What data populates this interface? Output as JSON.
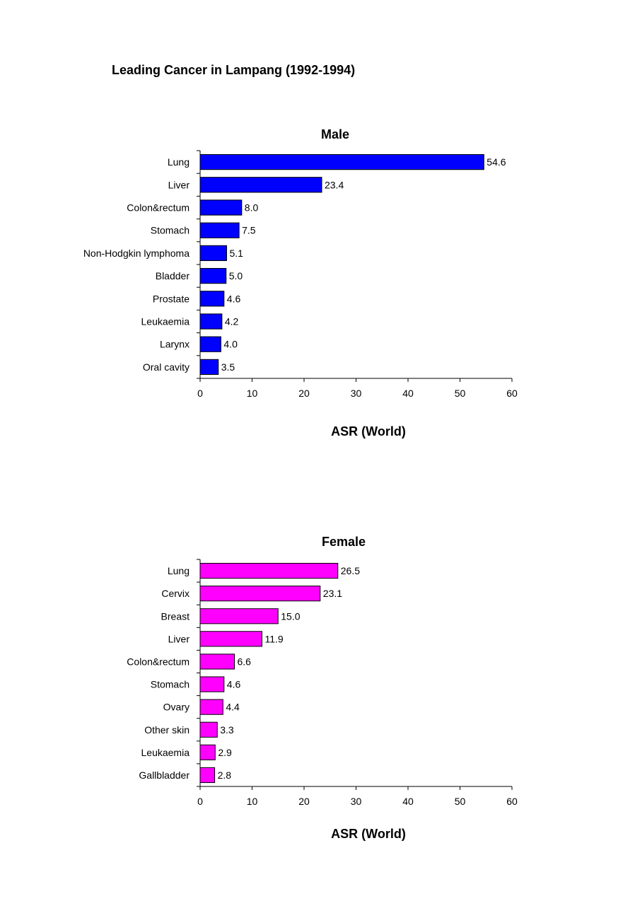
{
  "page": {
    "title": "Leading Cancer in Lampang (1992-1994)"
  },
  "chart_data": [
    {
      "type": "bar",
      "orientation": "horizontal",
      "title": "Male",
      "xlabel": "ASR (World)",
      "ylabel": "",
      "xlim": [
        0,
        60
      ],
      "ticks": [
        "0",
        "10",
        "20",
        "30",
        "40",
        "50",
        "60"
      ],
      "tick_values": [
        0,
        10,
        20,
        30,
        40,
        50,
        60
      ],
      "grid": false,
      "color": "#0000FF",
      "categories": [
        "Lung",
        "Liver",
        "Colon&rectum",
        "Stomach",
        "Non-Hodgkin lymphoma",
        "Bladder",
        "Prostate",
        "Leukaemia",
        "Larynx",
        "Oral cavity"
      ],
      "values": [
        54.6,
        23.4,
        8.0,
        7.5,
        5.1,
        5.0,
        4.6,
        4.2,
        4.0,
        3.5
      ],
      "value_labels": [
        "54.6",
        "23.4",
        "8.0",
        "7.5",
        "5.1",
        "5.0",
        "4.6",
        "4.2",
        "4.0",
        "3.5"
      ]
    },
    {
      "type": "bar",
      "orientation": "horizontal",
      "title": "Female",
      "xlabel": "ASR (World)",
      "ylabel": "",
      "xlim": [
        0,
        60
      ],
      "ticks": [
        "0",
        "10",
        "20",
        "30",
        "40",
        "50",
        "60"
      ],
      "tick_values": [
        0,
        10,
        20,
        30,
        40,
        50,
        60
      ],
      "grid": false,
      "color": "#FF00FF",
      "categories": [
        "Lung",
        "Cervix",
        "Breast",
        "Liver",
        "Colon&rectum",
        "Stomach",
        "Ovary",
        "Other skin",
        "Leukaemia",
        "Gallbladder"
      ],
      "values": [
        26.5,
        23.1,
        15.0,
        11.9,
        6.6,
        4.6,
        4.4,
        3.3,
        2.9,
        2.8
      ],
      "value_labels": [
        "26.5",
        "23.1",
        "15.0",
        "11.9",
        "6.6",
        "4.6",
        "4.4",
        "3.3",
        "2.9",
        "2.8"
      ]
    }
  ]
}
